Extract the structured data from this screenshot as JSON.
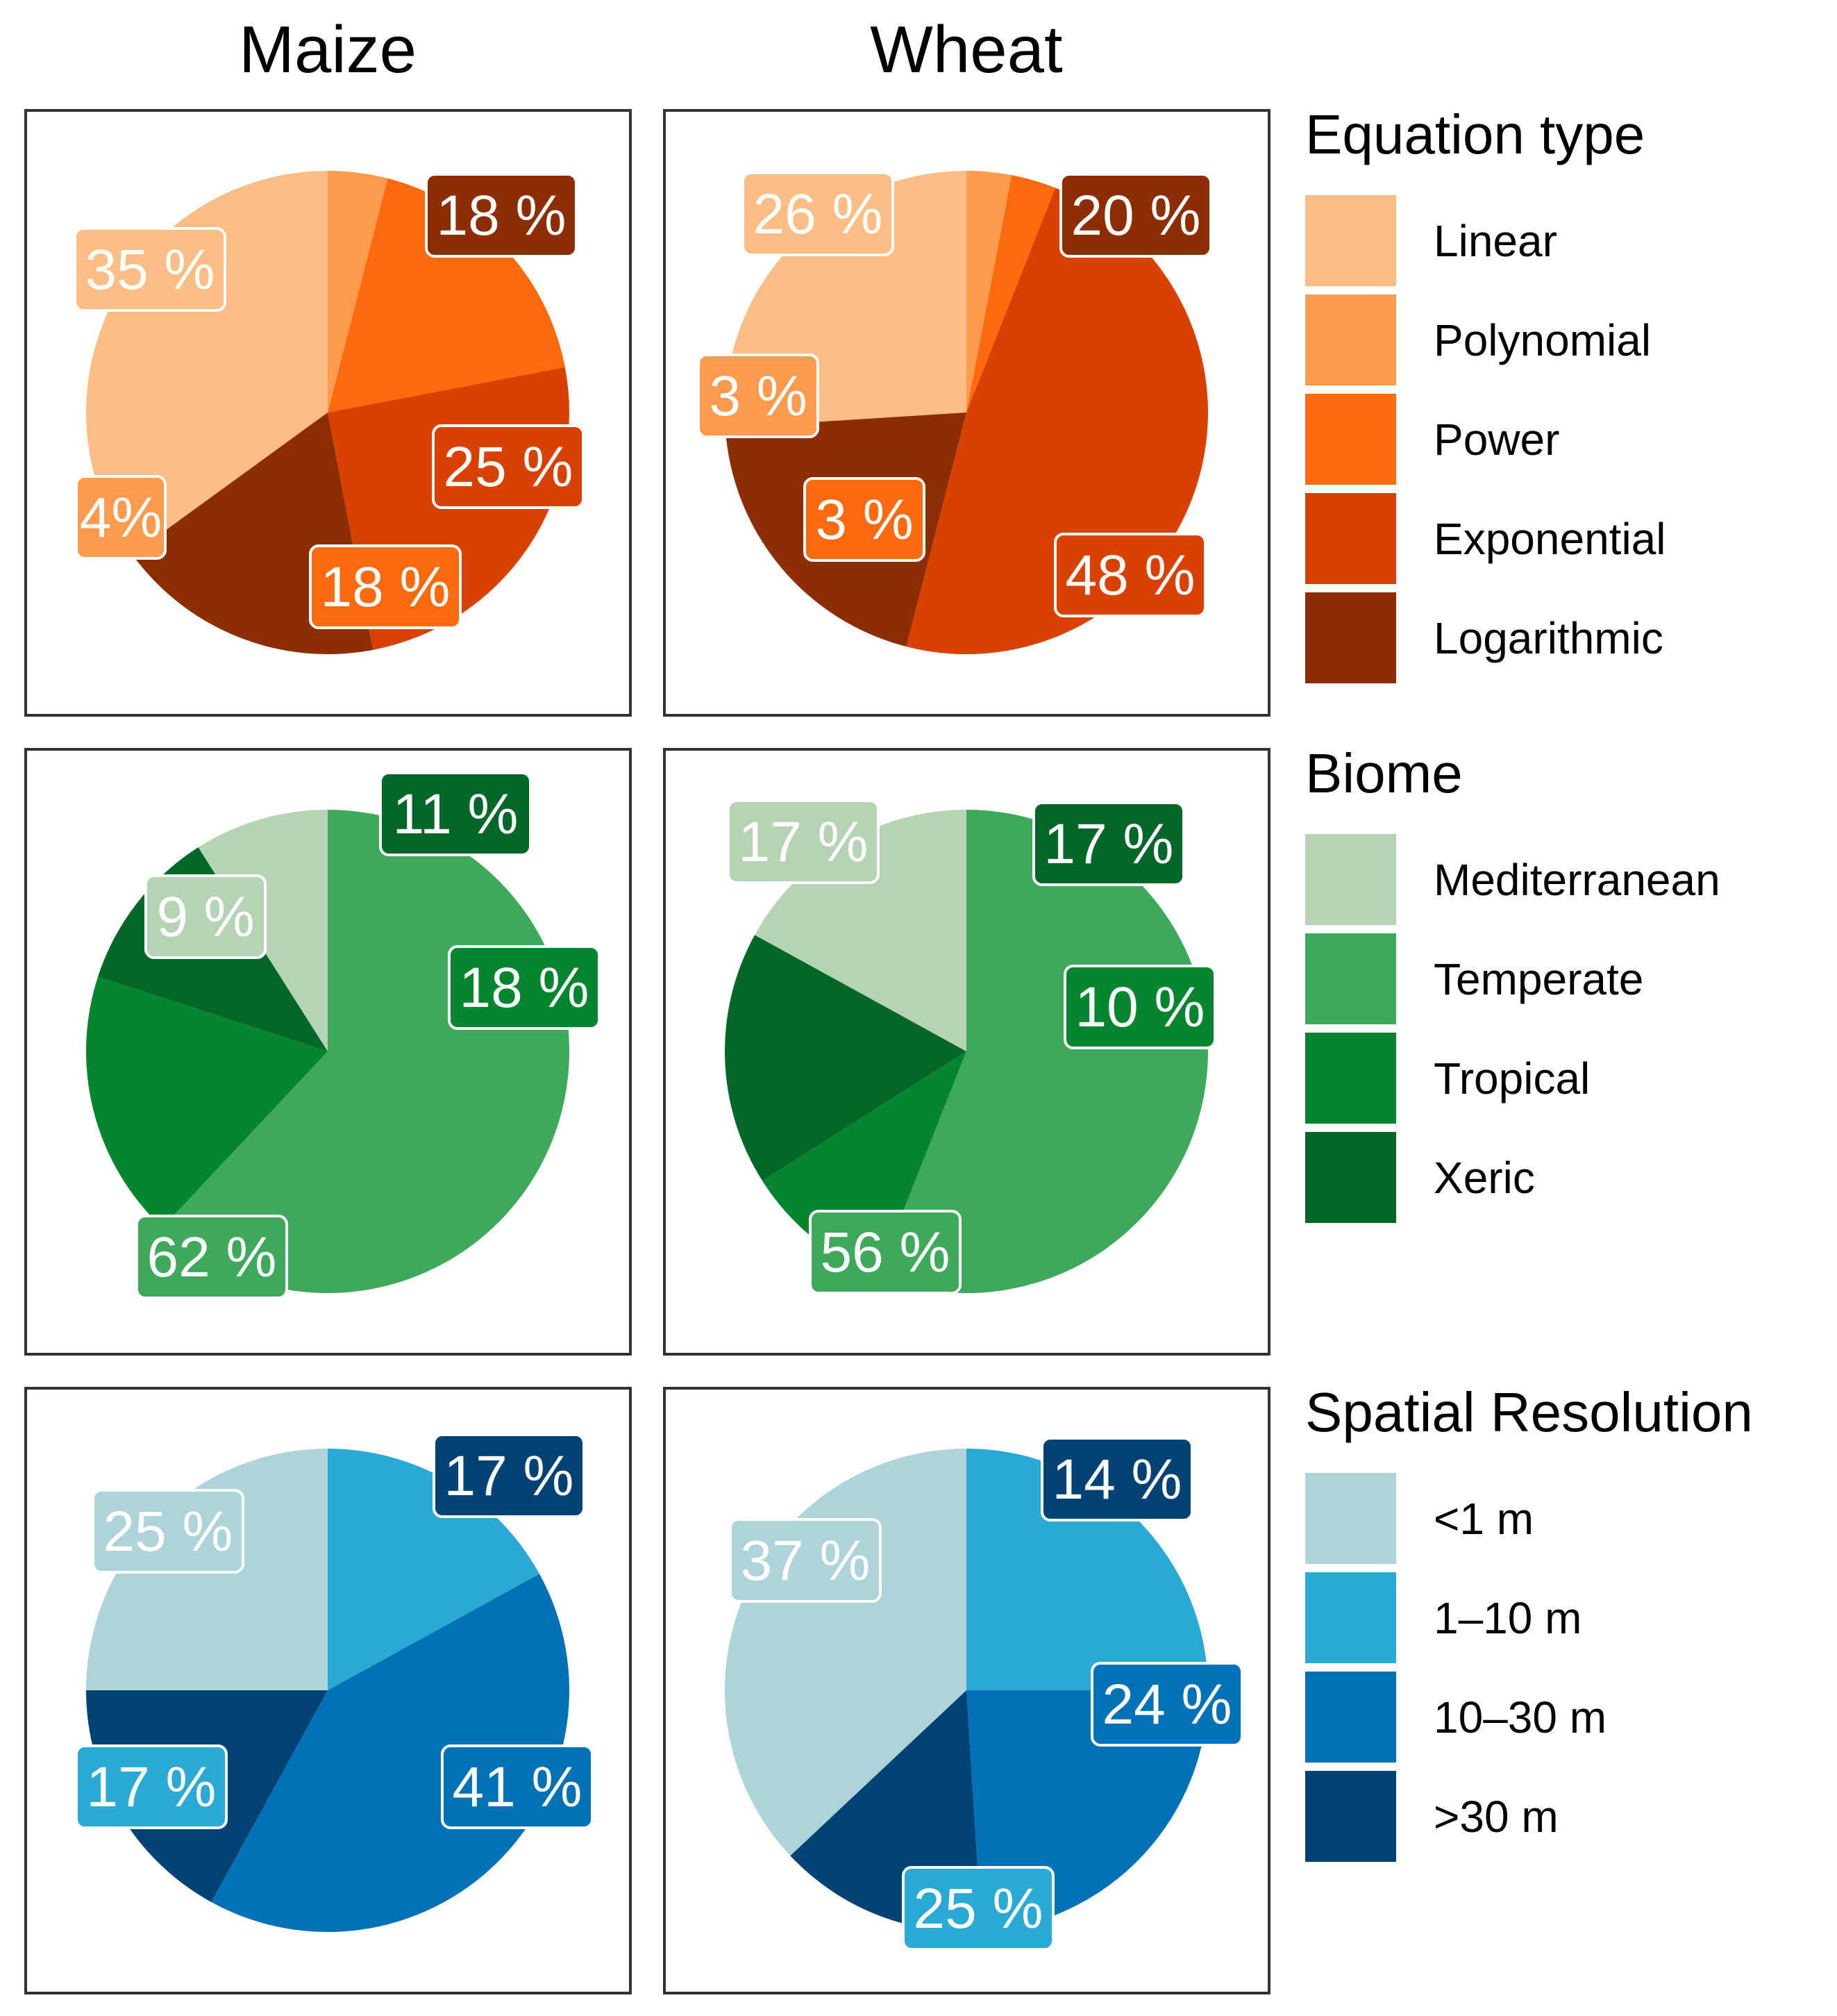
{
  "columns": [
    "Maize",
    "Wheat"
  ],
  "chart_data": [
    {
      "type": "pie",
      "crop": "Maize",
      "legend_title": "Equation type",
      "categories": [
        "Linear",
        "Polynomial",
        "Power",
        "Exponential",
        "Logarithmic"
      ],
      "values": [
        35,
        4,
        18,
        25,
        18
      ],
      "labels": [
        "35 %",
        "4%",
        "18 %",
        "25 %",
        "18 %"
      ],
      "colors": [
        "#fdbe85",
        "#fd9a4e",
        "#fd6a0e",
        "#d94101",
        "#8c2d04"
      ]
    },
    {
      "type": "pie",
      "crop": "Wheat",
      "legend_title": "Equation type",
      "categories": [
        "Linear",
        "Polynomial",
        "Power",
        "Exponential",
        "Logarithmic"
      ],
      "values": [
        26,
        3,
        3,
        48,
        20
      ],
      "labels": [
        "26 %",
        "3 %",
        "3 %",
        "48 %",
        "20 %"
      ],
      "colors": [
        "#fdbe85",
        "#fd9a4e",
        "#fd6a0e",
        "#d94101",
        "#8c2d04"
      ]
    },
    {
      "type": "pie",
      "crop": "Maize",
      "legend_title": "Biome",
      "categories": [
        "Mediterranean",
        "Temperate",
        "Tropical",
        "Xeric"
      ],
      "values": [
        9,
        62,
        18,
        11
      ],
      "labels": [
        "9 %",
        "62 %",
        "18 %",
        "11 %"
      ],
      "colors": [
        "#b7d3b5",
        "#3ea85b",
        "#06852f",
        "#03672a"
      ]
    },
    {
      "type": "pie",
      "crop": "Wheat",
      "legend_title": "Biome",
      "categories": [
        "Mediterranean",
        "Temperate",
        "Tropical",
        "Xeric"
      ],
      "values": [
        17,
        56,
        10,
        17
      ],
      "labels": [
        "17 %",
        "56 %",
        "10 %",
        "17 %"
      ],
      "colors": [
        "#b7d3b5",
        "#3ea85b",
        "#06852f",
        "#03672a"
      ]
    },
    {
      "type": "pie",
      "crop": "Maize",
      "legend_title": "Spatial Resolution",
      "categories": [
        "<1 m",
        "1–10 m",
        "10–30 m",
        ">30 m"
      ],
      "values": [
        25,
        17,
        41,
        17
      ],
      "labels": [
        "25 %",
        "17 %",
        "41 %",
        "17 %"
      ],
      "colors": [
        "#acd4d9",
        "#2aa9d4",
        "#0271b6",
        "#024274"
      ]
    },
    {
      "type": "pie",
      "crop": "Wheat",
      "legend_title": "Spatial Resolution",
      "categories": [
        "<1 m",
        "1–10 m",
        "10–30 m",
        ">30 m"
      ],
      "values": [
        37,
        25,
        24,
        14
      ],
      "labels": [
        "37 %",
        "25 %",
        "24 %",
        "14 %"
      ],
      "colors": [
        "#acd4d9",
        "#2aa9d4",
        "#0271b6",
        "#024274"
      ]
    }
  ]
}
